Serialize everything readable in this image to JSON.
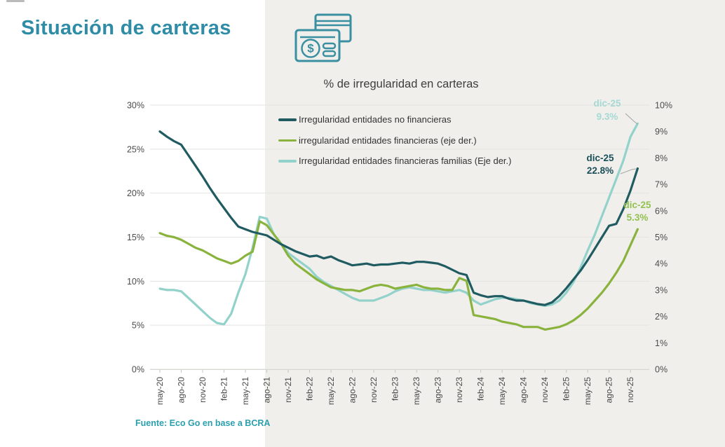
{
  "page": {
    "title": "Situación de carteras",
    "source": "Fuente: Eco Go en base a BCRA"
  },
  "icon": {
    "name": "credit-cards-icon",
    "dollar_glyph": "$"
  },
  "colors": {
    "accent_teal": "#2e8ca6",
    "source_teal": "#2a9fae",
    "axis_text": "#4c4c4c",
    "x_axis_text": "#474747",
    "gridline": "#e3e3e0",
    "axis_line": "#d6d6d3",
    "tick": "#c6c6c3",
    "band": "#f0efec",
    "icon_stroke": "#3a8fa0",
    "leader_line": "#a3a3a0"
  },
  "chart_data": {
    "type": "line",
    "title": "% de irregularidad en carteras",
    "grid": true,
    "legend_position": "top-left-inside",
    "x_tick_labels": [
      "may-20",
      "ago-20",
      "nov-20",
      "feb-21",
      "may-21",
      "ago-21",
      "nov-21",
      "feb-22",
      "may-22",
      "ago-22",
      "nov-22",
      "feb-23",
      "may-23",
      "ago-23",
      "nov-23",
      "feb-24",
      "may-24",
      "ago-24",
      "nov-24",
      "feb-25",
      "may-25",
      "ago-25",
      "nov-25"
    ],
    "x_months": [
      "may-20",
      "jun-20",
      "jul-20",
      "ago-20",
      "sep-20",
      "oct-20",
      "nov-20",
      "dic-20",
      "ene-21",
      "feb-21",
      "mar-21",
      "abr-21",
      "may-21",
      "jun-21",
      "jul-21",
      "ago-21",
      "sep-21",
      "oct-21",
      "nov-21",
      "dic-21",
      "ene-22",
      "feb-22",
      "mar-22",
      "abr-22",
      "may-22",
      "jun-22",
      "jul-22",
      "ago-22",
      "sep-22",
      "oct-22",
      "nov-22",
      "dic-22",
      "ene-23",
      "feb-23",
      "mar-23",
      "abr-23",
      "may-23",
      "jun-23",
      "jul-23",
      "ago-23",
      "sep-23",
      "oct-23",
      "nov-23",
      "dic-23",
      "ene-24",
      "feb-24",
      "mar-24",
      "abr-24",
      "may-24",
      "jun-24",
      "jul-24",
      "ago-24",
      "sep-24",
      "oct-24",
      "nov-24",
      "dic-24",
      "ene-25",
      "feb-25",
      "mar-25",
      "abr-25",
      "may-25",
      "jun-25",
      "jul-25",
      "ago-25",
      "sep-25",
      "oct-25",
      "nov-25",
      "dic-25"
    ],
    "left_axis": {
      "min": 0,
      "max": 30,
      "step": 5,
      "tick_labels": [
        "0%",
        "5%",
        "10%",
        "15%",
        "20%",
        "25%",
        "30%"
      ]
    },
    "right_axis": {
      "min": 0,
      "max": 10,
      "step": 1,
      "tick_labels": [
        "0%",
        "1%",
        "2%",
        "3%",
        "4%",
        "5%",
        "6%",
        "7%",
        "8%",
        "9%",
        "10%"
      ]
    },
    "series": [
      {
        "name": "Irregularidad entidades no financieras",
        "axis": "left",
        "color": "#1f5b60",
        "values": [
          27.0,
          26.4,
          25.9,
          25.5,
          24.3,
          23.1,
          21.9,
          20.6,
          19.4,
          18.3,
          17.2,
          16.2,
          15.9,
          15.6,
          15.4,
          15.2,
          14.7,
          14.2,
          13.8,
          13.4,
          13.1,
          12.8,
          12.9,
          12.6,
          12.8,
          12.4,
          12.1,
          11.8,
          11.9,
          12.0,
          11.8,
          11.9,
          11.9,
          12.0,
          12.1,
          12.0,
          12.2,
          12.2,
          12.1,
          12.0,
          11.7,
          11.3,
          10.9,
          10.7,
          8.7,
          8.4,
          8.2,
          8.3,
          8.3,
          8.0,
          7.8,
          7.8,
          7.6,
          7.4,
          7.3,
          7.6,
          8.3,
          9.2,
          10.2,
          11.2,
          12.4,
          13.7,
          15.0,
          16.3,
          16.5,
          18.2,
          20.3,
          22.8
        ]
      },
      {
        "name": "irregularidad entidades financieras (eje der.)",
        "axis": "right",
        "color": "#8ab33e",
        "values": [
          5.15,
          5.05,
          5.0,
          4.9,
          4.75,
          4.6,
          4.5,
          4.35,
          4.2,
          4.1,
          4.0,
          4.1,
          4.3,
          4.45,
          5.6,
          5.45,
          5.1,
          4.75,
          4.3,
          4.0,
          3.8,
          3.6,
          3.4,
          3.25,
          3.1,
          3.05,
          3.0,
          3.0,
          2.95,
          3.05,
          3.15,
          3.2,
          3.15,
          3.05,
          3.1,
          3.15,
          3.2,
          3.1,
          3.05,
          3.05,
          3.0,
          3.0,
          3.45,
          3.35,
          2.05,
          2.0,
          1.95,
          1.9,
          1.8,
          1.75,
          1.7,
          1.6,
          1.6,
          1.6,
          1.5,
          1.55,
          1.6,
          1.7,
          1.85,
          2.05,
          2.3,
          2.6,
          2.9,
          3.25,
          3.65,
          4.1,
          4.7,
          5.3
        ]
      },
      {
        "name": "Irregularidad entidades financieras familias (Eje der.)",
        "axis": "right",
        "color": "#93d2cb",
        "values": [
          3.05,
          3.0,
          3.0,
          2.95,
          2.7,
          2.45,
          2.2,
          1.95,
          1.75,
          1.7,
          2.1,
          2.9,
          3.6,
          4.6,
          5.77,
          5.7,
          5.1,
          4.75,
          4.4,
          4.2,
          4.0,
          3.8,
          3.5,
          3.3,
          3.15,
          3.0,
          2.85,
          2.7,
          2.6,
          2.6,
          2.6,
          2.7,
          2.8,
          2.95,
          3.05,
          3.1,
          3.05,
          3.0,
          3.0,
          2.95,
          2.9,
          2.95,
          3.0,
          2.9,
          2.6,
          2.45,
          2.55,
          2.65,
          2.7,
          2.7,
          2.65,
          2.6,
          2.5,
          2.45,
          2.4,
          2.45,
          2.6,
          2.9,
          3.3,
          3.85,
          4.5,
          5.1,
          5.8,
          6.5,
          7.2,
          7.9,
          8.8,
          9.3
        ]
      }
    ],
    "annotations": [
      {
        "series": "Irregularidad entidades financieras familias (Eje der.)",
        "label": "dic-25",
        "value": "9.3%",
        "color": "#a5d9d3"
      },
      {
        "series": "Irregularidad entidades no financieras",
        "label": "dic-25",
        "value": "22.8%",
        "color": "#1a4f58"
      },
      {
        "series": "irregularidad entidades financieras (eje der.)",
        "label": "dic-25",
        "value": "5.3%",
        "color": "#92c150"
      }
    ]
  }
}
